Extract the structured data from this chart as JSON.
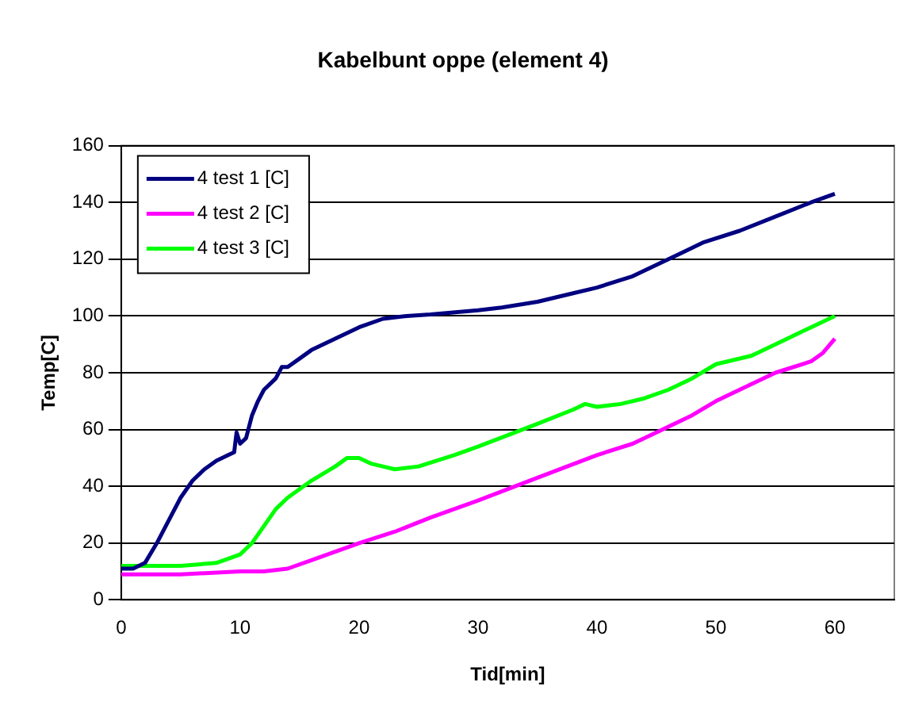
{
  "chart_data": {
    "type": "line",
    "title": "Kabelbunt oppe (element 4)",
    "xlabel": "Tid[min]",
    "ylabel": "Temp[C]",
    "xlim": [
      0,
      65
    ],
    "xticks": [
      0,
      10,
      20,
      30,
      40,
      50,
      60
    ],
    "ylim": [
      0,
      160
    ],
    "yticks": [
      0,
      20,
      40,
      60,
      80,
      100,
      120,
      140,
      160
    ],
    "grid": "y",
    "legend": "top left",
    "marker": "none",
    "line_style": "solid",
    "series": [
      {
        "name": "4 test 1 [C]",
        "color": "#000080",
        "x": [
          0,
          1,
          2,
          3,
          4,
          5,
          6,
          7,
          8,
          9,
          9.5,
          9.7,
          10,
          10.5,
          11,
          11.5,
          12,
          13,
          13.5,
          14,
          15,
          16,
          18,
          20,
          22,
          24,
          26,
          30,
          32,
          35,
          38,
          40,
          43,
          45,
          47,
          49,
          52,
          55,
          58,
          60
        ],
        "values": [
          11,
          11,
          13,
          20,
          28,
          36,
          42,
          46,
          49,
          51,
          52,
          59,
          55,
          57,
          65,
          70,
          74,
          78,
          82,
          82,
          85,
          88,
          92,
          96,
          99,
          100,
          100.5,
          102,
          103,
          105,
          108,
          110,
          114,
          118,
          122,
          126,
          130,
          135,
          140,
          143
        ]
      },
      {
        "name": "4 test 2 [C]",
        "color": "#ff00ff",
        "x": [
          0,
          5,
          10,
          12,
          14,
          16,
          18,
          20,
          23,
          26,
          30,
          35,
          40,
          43,
          45,
          48,
          50,
          53,
          55,
          58,
          59,
          60
        ],
        "values": [
          9,
          9,
          10,
          10,
          11,
          14,
          17,
          20,
          24,
          29,
          35,
          43,
          51,
          55,
          59,
          65,
          70,
          76,
          80,
          84,
          87,
          92
        ]
      },
      {
        "name": "4 test 3 [C]",
        "color": "#00ff00",
        "x": [
          0,
          5,
          8,
          10,
          11,
          12,
          13,
          14,
          16,
          18,
          19,
          20,
          21,
          22,
          23,
          25,
          28,
          30,
          35,
          38,
          39,
          40,
          42,
          44,
          46,
          48,
          50,
          53,
          55,
          58,
          60
        ],
        "values": [
          12,
          12,
          13,
          16,
          20,
          26,
          32,
          36,
          42,
          47,
          50,
          50,
          48,
          47,
          46,
          47,
          51,
          54,
          62,
          67,
          69,
          68,
          69,
          71,
          74,
          78,
          83,
          86,
          90,
          96,
          100
        ]
      }
    ]
  }
}
